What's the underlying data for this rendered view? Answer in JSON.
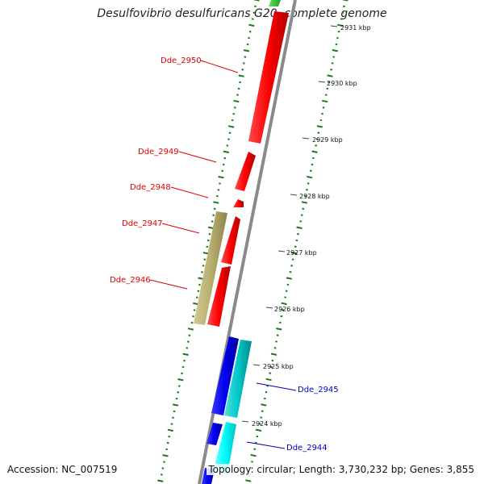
{
  "title": "Desulfovibrio desulfuricans G20, complete genome",
  "footer": {
    "accession": "Accession: NC_007519",
    "stats": "Topology: circular; Length: 3,730,232 bp; Genes: 3,855"
  },
  "ticks": [
    "2931 kbp",
    "2930 kbp",
    "2929 kbp",
    "2928 kbp",
    "2927 kbp",
    "2926 kbp",
    "2925 kbp",
    "2924 kbp"
  ],
  "genes": [
    {
      "label": "Dde_2950",
      "color": "#e00000"
    },
    {
      "label": "Dde_2949",
      "color": "#e00000"
    },
    {
      "label": "Dde_2948",
      "color": "#e00000"
    },
    {
      "label": "Dde_2947",
      "color": "#e00000"
    },
    {
      "label": "Dde_2946",
      "color": "#e00000"
    },
    {
      "label": "Dde_2945",
      "color": "#0000c0"
    },
    {
      "label": "Dde_2944",
      "color": "#0000c0"
    }
  ],
  "colors": {
    "forward_strand": "#ff0000",
    "reverse_strand_dark": "#0000ee",
    "reverse_strand_light": "#00c8c8",
    "rna": "#b8b070",
    "dots": "#1a7a1a",
    "backbone": "#8a8a8a"
  }
}
